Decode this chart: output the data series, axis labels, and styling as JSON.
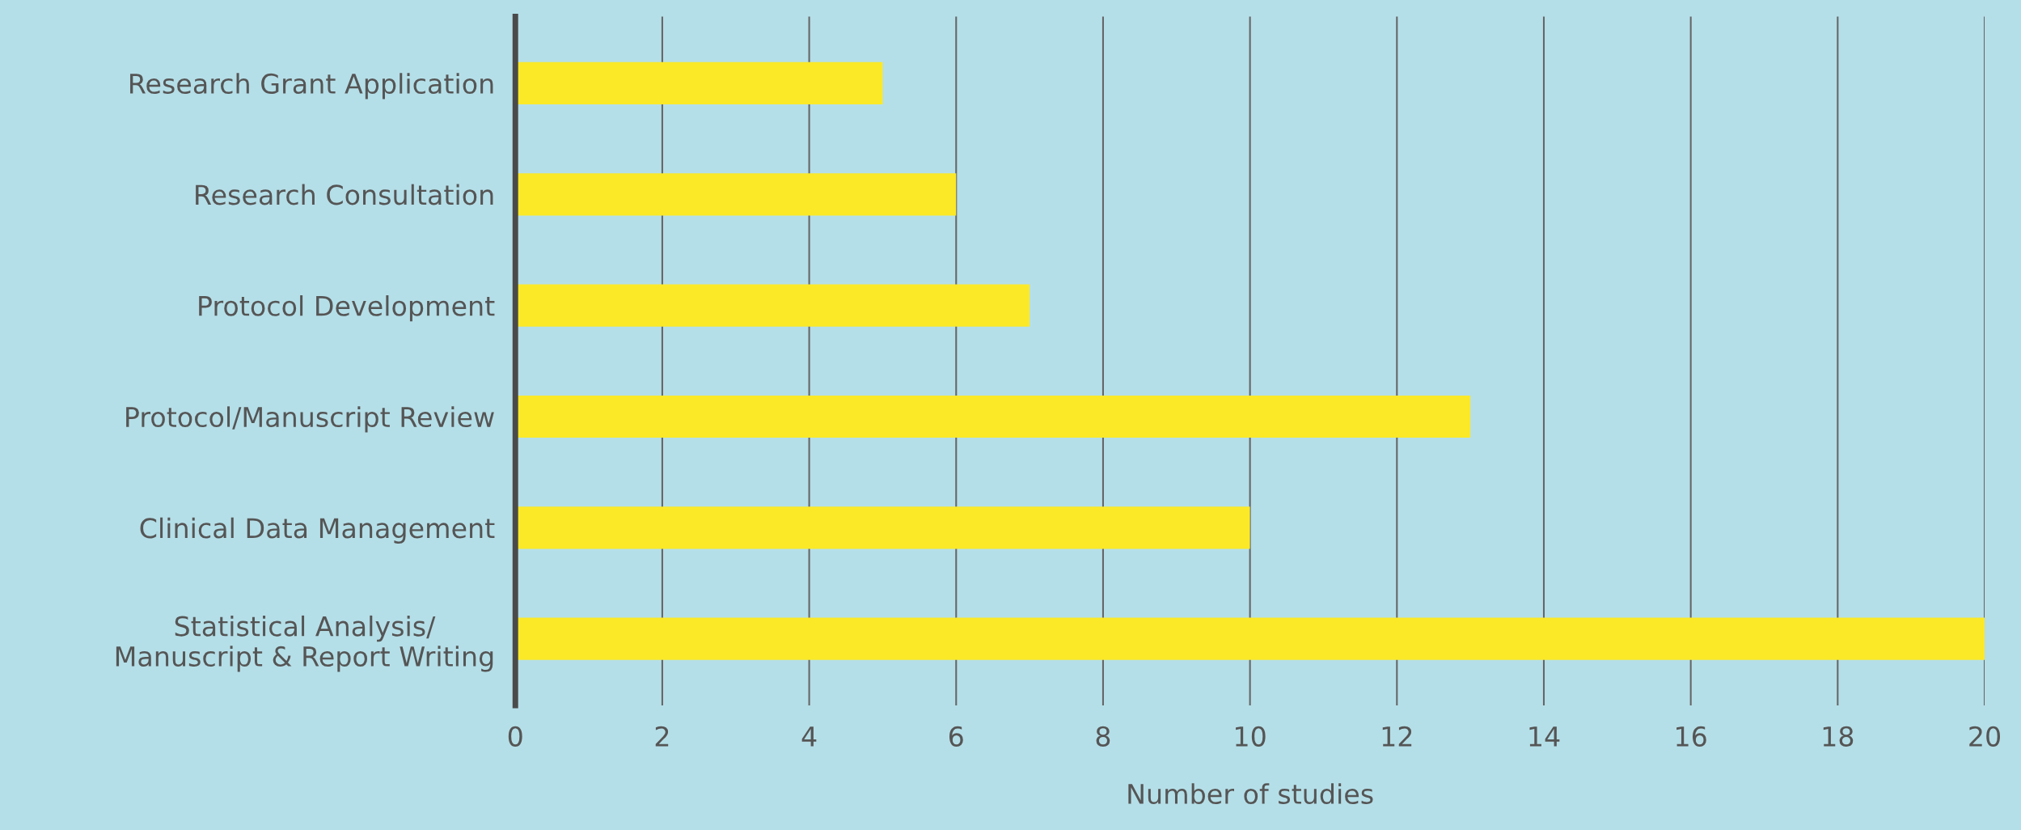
{
  "chart_data": {
    "type": "bar",
    "orientation": "horizontal",
    "xlabel": "Number of studies",
    "categories": [
      "Research Grant Application",
      "Research Consultation",
      "Protocol Development",
      "Protocol/Manuscript Review",
      "Clinical Data Management",
      "Statistical Analysis/\nManuscript & Report Writing"
    ],
    "values": [
      5,
      6,
      7,
      13,
      10,
      20
    ],
    "color": "#fbe928",
    "xlim": [
      0,
      20
    ],
    "xticks": [
      0,
      2,
      4,
      6,
      8,
      10,
      12,
      14,
      16,
      18,
      20
    ],
    "grid": "x",
    "legend": false
  }
}
